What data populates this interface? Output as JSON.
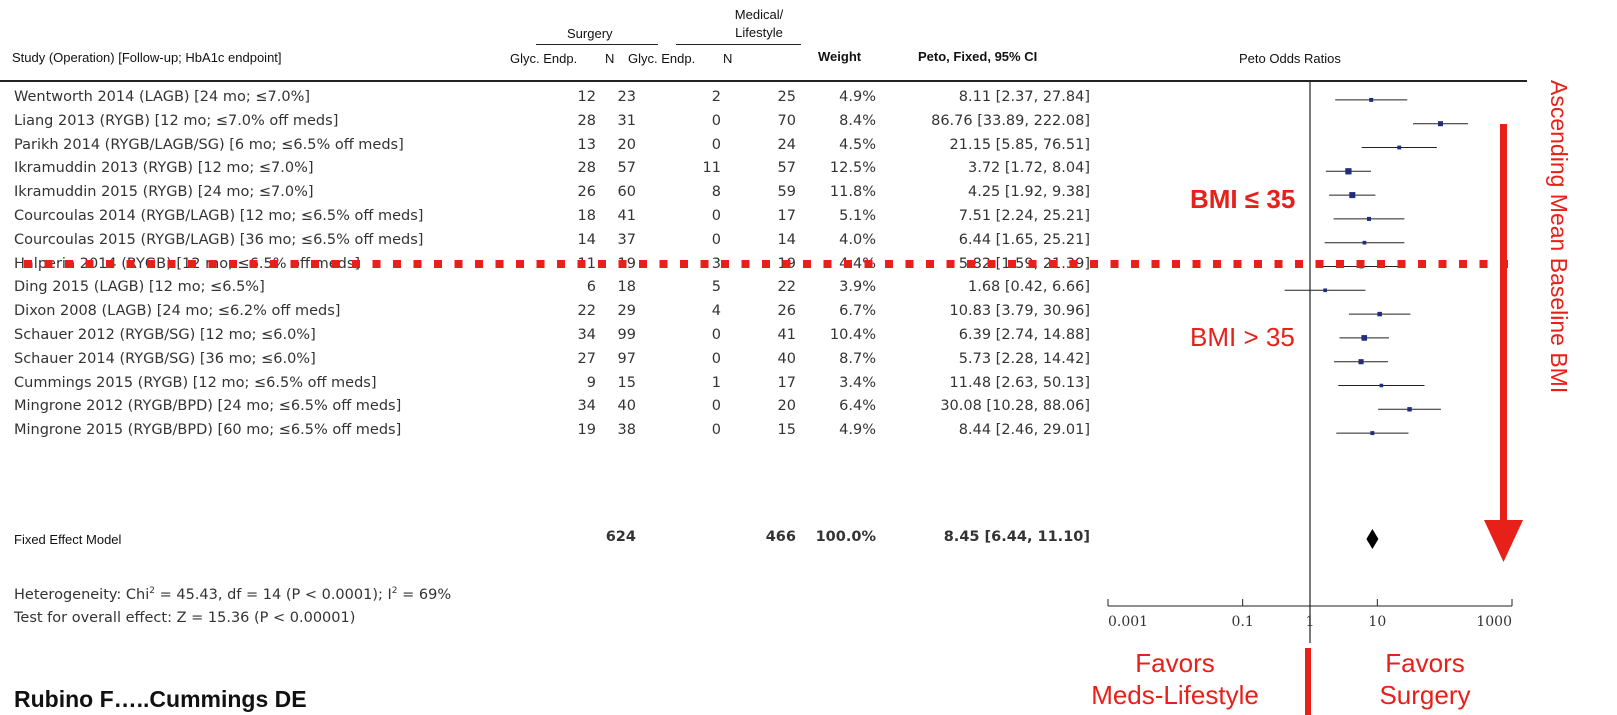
{
  "header": {
    "study_col": "Study (Operation) [Follow-up; HbA1c endpoint]",
    "surgery_group": "Surgery",
    "medical_group_line1": "Medical/",
    "medical_group_line2": "Lifestyle",
    "glyc_endp_1": "Glyc. Endp.",
    "n_1": "N",
    "glyc_endp_2": "Glyc. Endp.",
    "n_2": "N",
    "weight": "Weight",
    "peto_ci": "Peto, Fixed, 95% CI",
    "plot_title": "Peto Odds Ratios"
  },
  "rows": [
    {
      "study": "Wentworth 2014 (LAGB) [24 mo; ≤7.0%]",
      "s_e": "12",
      "s_n": "23",
      "m_e": "2",
      "m_n": "25",
      "weight": "4.9%",
      "ci": "8.11 [2.37, 27.84]"
    },
    {
      "study": "Liang 2013 (RYGB) [12 mo; ≤7.0% off meds]",
      "s_e": "28",
      "s_n": "31",
      "m_e": "0",
      "m_n": "70",
      "weight": "8.4%",
      "ci": "86.76 [33.89, 222.08]"
    },
    {
      "study": "Parikh 2014 (RYGB/LAGB/SG) [6 mo; ≤6.5% off meds]",
      "s_e": "13",
      "s_n": "20",
      "m_e": "0",
      "m_n": "24",
      "weight": "4.5%",
      "ci": "21.15 [5.85, 76.51]"
    },
    {
      "study": "Ikramuddin 2013 (RYGB) [12 mo; ≤7.0%]",
      "s_e": "28",
      "s_n": "57",
      "m_e": "11",
      "m_n": "57",
      "weight": "12.5%",
      "ci": "3.72 [1.72, 8.04]"
    },
    {
      "study": "Ikramuddin 2015 (RYGB) [24 mo; ≤7.0%]",
      "s_e": "26",
      "s_n": "60",
      "m_e": "8",
      "m_n": "59",
      "weight": "11.8%",
      "ci": "4.25 [1.92, 9.38]"
    },
    {
      "study": "Courcoulas 2014 (RYGB/LAGB) [12 mo; ≤6.5% off meds]",
      "s_e": "18",
      "s_n": "41",
      "m_e": "0",
      "m_n": "17",
      "weight": "5.1%",
      "ci": "7.51 [2.24, 25.21]"
    },
    {
      "study": "Courcoulas 2015 (RYGB/LAGB) [36 mo; ≤6.5% off meds]",
      "s_e": "14",
      "s_n": "37",
      "m_e": "0",
      "m_n": "14",
      "weight": "4.0%",
      "ci": "6.44 [1.65, 25.21]"
    },
    {
      "study": "Halperin 2014 (RYGB) [12 mo; ≤6.5% off meds]",
      "s_e": "11",
      "s_n": "19",
      "m_e": "3",
      "m_n": "19",
      "weight": "4.4%",
      "ci": "5.82 [1.59, 21.39]"
    },
    {
      "study": "Ding 2015 (LAGB) [12 mo; ≤6.5%]",
      "s_e": "6",
      "s_n": "18",
      "m_e": "5",
      "m_n": "22",
      "weight": "3.9%",
      "ci": "1.68 [0.42, 6.66]"
    },
    {
      "study": "Dixon 2008 (LAGB) [24 mo; ≤6.2% off meds]",
      "s_e": "22",
      "s_n": "29",
      "m_e": "4",
      "m_n": "26",
      "weight": "6.7%",
      "ci": "10.83 [3.79, 30.96]"
    },
    {
      "study": "Schauer 2012 (RYGB/SG) [12 mo; ≤6.0%]",
      "s_e": "34",
      "s_n": "99",
      "m_e": "0",
      "m_n": "41",
      "weight": "10.4%",
      "ci": "6.39 [2.74, 14.88]"
    },
    {
      "study": "Schauer 2014 (RYGB/SG) [36 mo; ≤6.0%]",
      "s_e": "27",
      "s_n": "97",
      "m_e": "0",
      "m_n": "40",
      "weight": "8.7%",
      "ci": "5.73 [2.28, 14.42]"
    },
    {
      "study": "Cummings 2015 (RYGB) [12 mo; ≤6.5% off meds]",
      "s_e": "9",
      "s_n": "15",
      "m_e": "1",
      "m_n": "17",
      "weight": "3.4%",
      "ci": "11.48 [2.63, 50.13]"
    },
    {
      "study": "Mingrone 2012 (RYGB/BPD) [24 mo; ≤6.5% off meds]",
      "s_e": "34",
      "s_n": "40",
      "m_e": "0",
      "m_n": "20",
      "weight": "6.4%",
      "ci": "30.08 [10.28, 88.06]"
    },
    {
      "study": "Mingrone 2015 (RYGB/BPD) [60 mo; ≤6.5% off meds]",
      "s_e": "19",
      "s_n": "38",
      "m_e": "0",
      "m_n": "15",
      "weight": "4.9%",
      "ci": "8.44 [2.46, 29.01]"
    }
  ],
  "total": {
    "label": "Fixed Effect Model",
    "s_n": "624",
    "m_n": "466",
    "weight": "100.0%",
    "ci": "8.45 [6.44, 11.10]"
  },
  "heterogeneity": {
    "prefix": "Heterogeneity: Chi",
    "sup": "2",
    "middle": " = 45.43, df = 14 (P < 0.0001); I",
    "suffix": " = 69%"
  },
  "overall_effect": "Test for overall effect: Z = 15.36 (P < 0.00001)",
  "annotations": {
    "bmi_low": "BMI ≤ 35",
    "bmi_high": "BMI > 35",
    "side_label": "Ascending Mean Baseline BMI",
    "favors_left_1": "Favors",
    "favors_left_2": "Meds-Lifestyle",
    "favors_right_1": "Favors",
    "favors_right_2": "Surgery",
    "citation": "Rubino F…..Cummings DE"
  },
  "colors": {
    "accent": "#e8201a",
    "marker": "#1f2d7a"
  },
  "chart_data": {
    "type": "forest",
    "title": "Peto Odds Ratios",
    "x_scale": "log",
    "xlim": [
      0.001,
      1000
    ],
    "x_ticks": [
      "0.001",
      "0.1",
      "1",
      "10",
      "1000"
    ],
    "reference_line": 1,
    "points": [
      {
        "or": 8.11,
        "lo": 2.37,
        "hi": 27.84,
        "weight": 4.9
      },
      {
        "or": 86.76,
        "lo": 33.89,
        "hi": 222.08,
        "weight": 8.4
      },
      {
        "or": 21.15,
        "lo": 5.85,
        "hi": 76.51,
        "weight": 4.5
      },
      {
        "or": 3.72,
        "lo": 1.72,
        "hi": 8.04,
        "weight": 12.5
      },
      {
        "or": 4.25,
        "lo": 1.92,
        "hi": 9.38,
        "weight": 11.8
      },
      {
        "or": 7.51,
        "lo": 2.24,
        "hi": 25.21,
        "weight": 5.1
      },
      {
        "or": 6.44,
        "lo": 1.65,
        "hi": 25.21,
        "weight": 4.0
      },
      {
        "or": 5.82,
        "lo": 1.59,
        "hi": 21.39,
        "weight": 4.4
      },
      {
        "or": 1.68,
        "lo": 0.42,
        "hi": 6.66,
        "weight": 3.9
      },
      {
        "or": 10.83,
        "lo": 3.79,
        "hi": 30.96,
        "weight": 6.7
      },
      {
        "or": 6.39,
        "lo": 2.74,
        "hi": 14.88,
        "weight": 10.4
      },
      {
        "or": 5.73,
        "lo": 2.28,
        "hi": 14.42,
        "weight": 8.7
      },
      {
        "or": 11.48,
        "lo": 2.63,
        "hi": 50.13,
        "weight": 3.4
      },
      {
        "or": 30.08,
        "lo": 10.28,
        "hi": 88.06,
        "weight": 6.4
      },
      {
        "or": 8.44,
        "lo": 2.46,
        "hi": 29.01,
        "weight": 4.9
      }
    ],
    "pooled": {
      "or": 8.45,
      "lo": 6.44,
      "hi": 11.1
    }
  }
}
